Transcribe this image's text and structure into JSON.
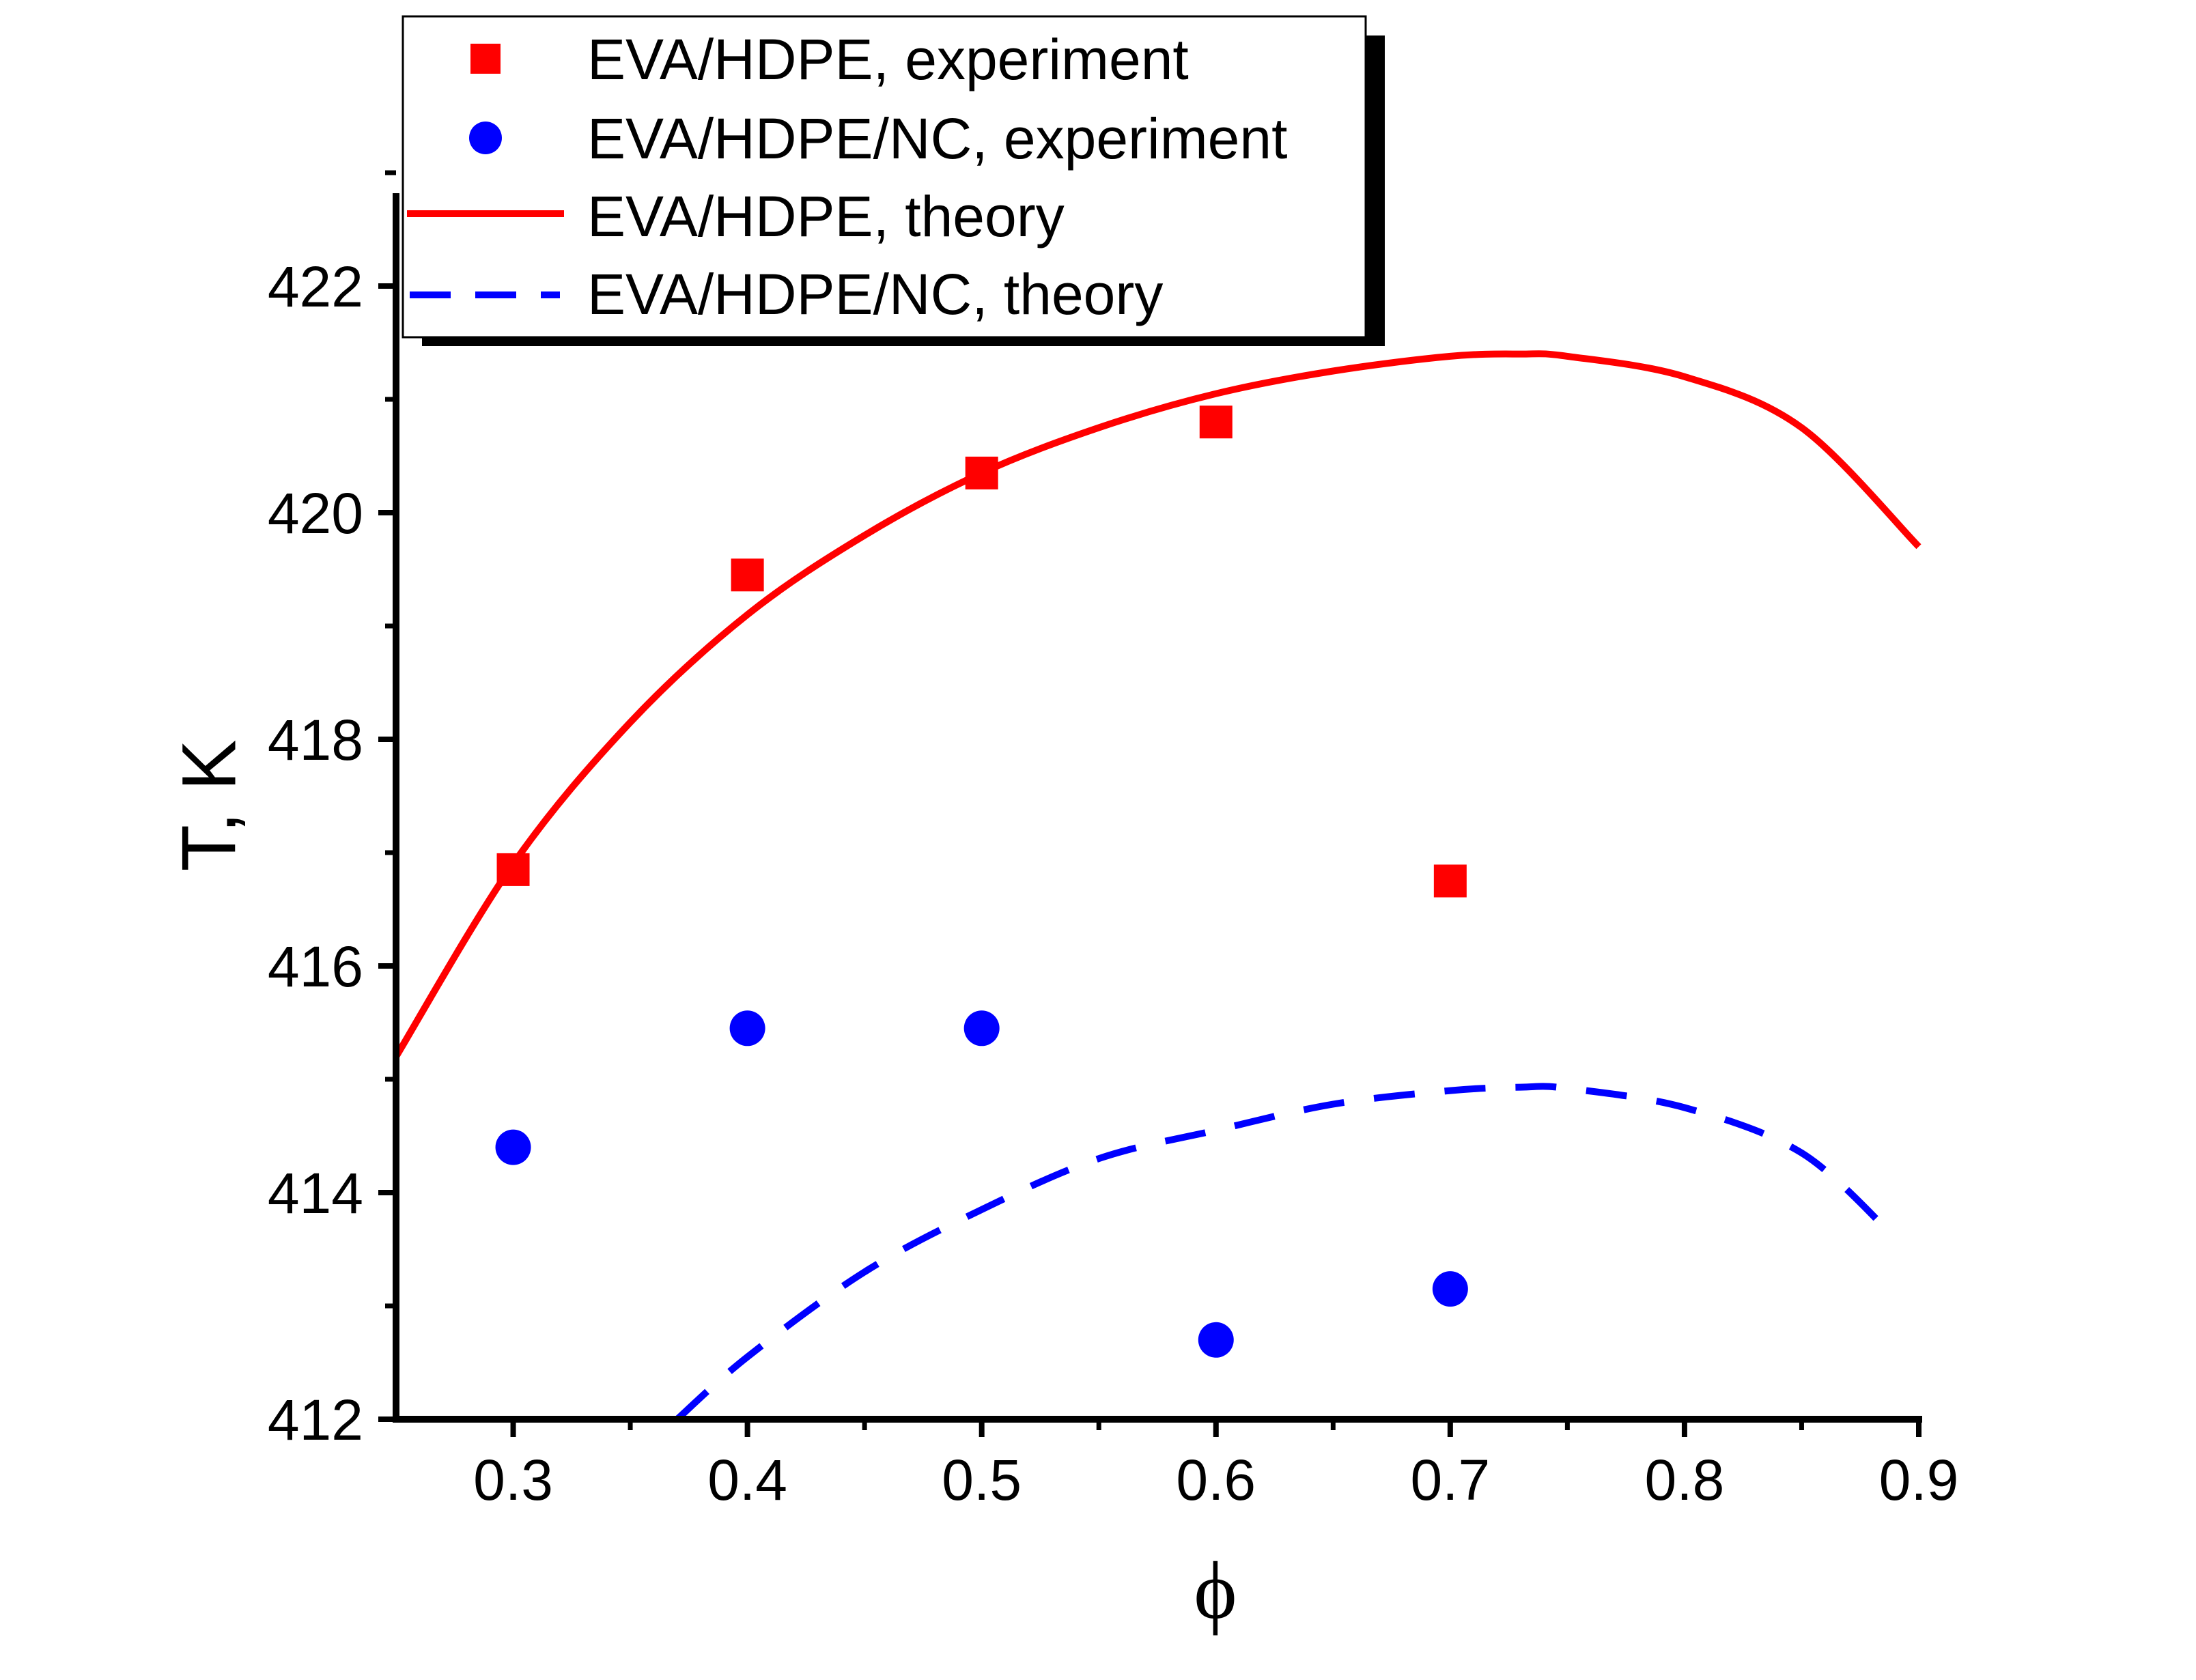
{
  "chart_data": {
    "type": "scatter",
    "title": "",
    "xlabel": "ϕ",
    "ylabel": "T, K",
    "xlim": [
      0.25,
      0.9
    ],
    "ylim": [
      412,
      423
    ],
    "x_ticks": [
      "0.3",
      "0.4",
      "0.5",
      "0.6",
      "0.7",
      "0.8",
      "0.9"
    ],
    "x_tick_values": [
      0.3,
      0.4,
      0.5,
      0.6,
      0.7,
      0.8,
      0.9
    ],
    "y_ticks": [
      "412",
      "414",
      "416",
      "418",
      "420",
      "422"
    ],
    "y_tick_values": [
      412,
      414,
      416,
      418,
      420,
      422
    ],
    "grid": false,
    "legend_position": "top-left",
    "series": [
      {
        "name": "EVA/HDPE, experiment",
        "kind": "scatter",
        "marker": "square",
        "color": "#ff0000",
        "x": [
          0.3,
          0.4,
          0.5,
          0.6,
          0.7
        ],
        "y": [
          416.85,
          419.45,
          420.35,
          420.8,
          416.75
        ]
      },
      {
        "name": "EVA/HDPE/NC, experiment",
        "kind": "scatter",
        "marker": "circle",
        "color": "#0000ff",
        "x": [
          0.3,
          0.4,
          0.5,
          0.6,
          0.7
        ],
        "y": [
          414.4,
          415.45,
          415.45,
          412.7,
          413.15
        ]
      },
      {
        "name": "EVA/HDPE, theory",
        "kind": "line",
        "style": "solid",
        "color": "#ff0000",
        "x": [
          0.25,
          0.3,
          0.35,
          0.4,
          0.45,
          0.5,
          0.55,
          0.6,
          0.65,
          0.7,
          0.73,
          0.75,
          0.8,
          0.85,
          0.9
        ],
        "y": [
          415.2,
          416.9,
          418.15,
          419.1,
          419.8,
          420.35,
          420.75,
          421.05,
          421.25,
          421.38,
          421.4,
          421.38,
          421.2,
          420.75,
          419.7
        ]
      },
      {
        "name": "EVA/HDPE/NC, theory",
        "kind": "line",
        "style": "dashed",
        "color": "#0000ff",
        "x": [
          0.37,
          0.4,
          0.45,
          0.5,
          0.55,
          0.6,
          0.65,
          0.7,
          0.73,
          0.75,
          0.8,
          0.85,
          0.89
        ],
        "y": [
          412.0,
          412.55,
          413.3,
          413.85,
          414.3,
          414.55,
          414.78,
          414.9,
          414.93,
          414.92,
          414.75,
          414.35,
          413.6
        ]
      }
    ]
  },
  "legend": {
    "items": [
      "EVA/HDPE, experiment",
      "EVA/HDPE/NC, experiment",
      "EVA/HDPE, theory",
      "EVA/HDPE/NC, theory"
    ]
  }
}
